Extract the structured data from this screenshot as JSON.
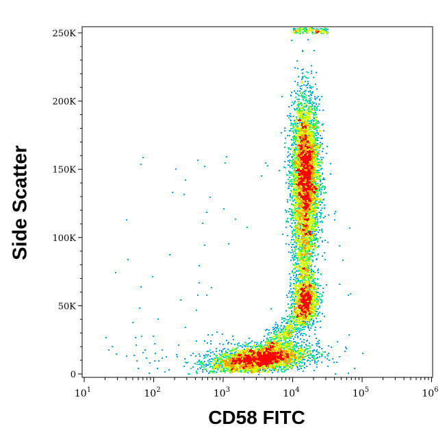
{
  "chart_data": {
    "type": "scatter",
    "subtype": "flow-cytometry density dot plot",
    "xlabel": "CD58 FITC",
    "ylabel": "Side Scatter",
    "xscale": "log",
    "xlim": [
      10,
      1000000
    ],
    "ylim": [
      0,
      255000
    ],
    "x_ticks": [
      {
        "value": 10,
        "base": "10",
        "exp": "1"
      },
      {
        "value": 100,
        "base": "10",
        "exp": "2"
      },
      {
        "value": 1000,
        "base": "10",
        "exp": "3"
      },
      {
        "value": 10000,
        "base": "10",
        "exp": "4"
      },
      {
        "value": 100000,
        "base": "10",
        "exp": "5"
      },
      {
        "value": 1000000,
        "base": "10",
        "exp": "6"
      }
    ],
    "y_ticks": [
      {
        "value": 0,
        "label": "0"
      },
      {
        "value": 50000,
        "label": "50K"
      },
      {
        "value": 100000,
        "label": "100K"
      },
      {
        "value": 150000,
        "label": "150K"
      },
      {
        "value": 200000,
        "label": "200K"
      },
      {
        "value": 250000,
        "label": "250K"
      }
    ],
    "populations": [
      {
        "x_center": 15000,
        "y_center": 145000,
        "x_spread_decades": 0.1,
        "y_spread": 28000,
        "relative_density": 1.0
      },
      {
        "x_center": 15000,
        "y_center": 55000,
        "x_spread_decades": 0.09,
        "y_spread": 9000,
        "relative_density": 0.45
      },
      {
        "x_center": 3200,
        "y_center": 11000,
        "x_spread_decades": 0.35,
        "y_spread": 5000,
        "relative_density": 0.85
      }
    ],
    "density_colors": [
      "#0000ff",
      "#00a0ff",
      "#00e8b0",
      "#40ff40",
      "#d8ff00",
      "#ffa000",
      "#ff0000"
    ],
    "grid": false,
    "legend": "none"
  }
}
